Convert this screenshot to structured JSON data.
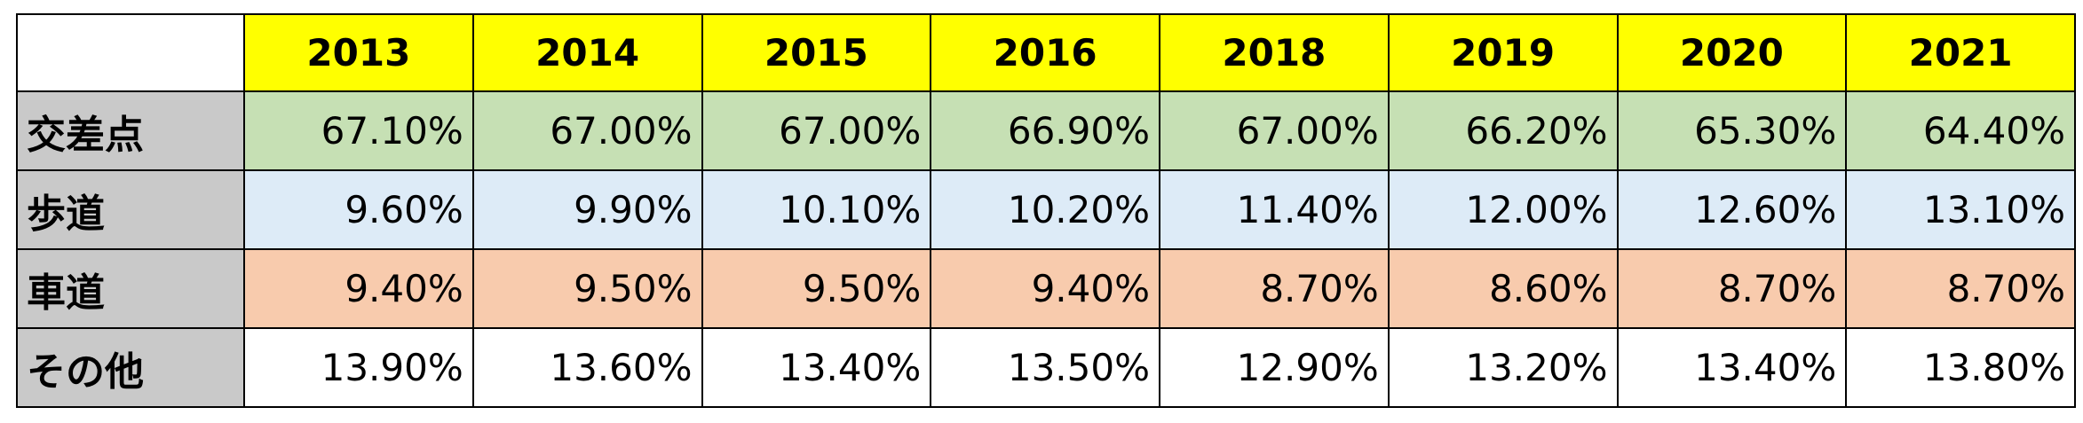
{
  "table": {
    "header": [
      "2013",
      "2014",
      "2015",
      "2016",
      "2018",
      "2019",
      "2020",
      "2021"
    ],
    "rows": [
      {
        "label": "交差点",
        "color": "#c6e0b4",
        "values": [
          "67.10%",
          "67.00%",
          "67.00%",
          "66.90%",
          "67.00%",
          "66.20%",
          "65.30%",
          "64.40%"
        ]
      },
      {
        "label": "歩道",
        "color": "#ddebf7",
        "values": [
          "9.60%",
          "9.90%",
          "10.10%",
          "10.20%",
          "11.40%",
          "12.00%",
          "12.60%",
          "13.10%"
        ]
      },
      {
        "label": "車道",
        "color": "#f8cbad",
        "values": [
          "9.40%",
          "9.50%",
          "9.50%",
          "9.40%",
          "8.70%",
          "8.60%",
          "8.70%",
          "8.70%"
        ]
      },
      {
        "label": "その他",
        "color": "#ffffff",
        "values": [
          "13.90%",
          "13.60%",
          "13.40%",
          "13.50%",
          "12.90%",
          "13.20%",
          "13.40%",
          "13.80%"
        ]
      }
    ]
  }
}
